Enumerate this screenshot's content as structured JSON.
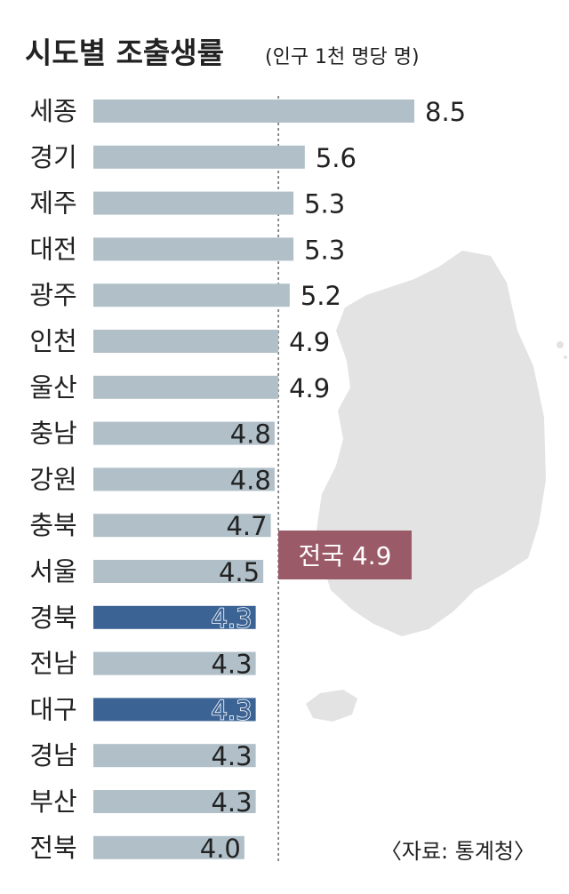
{
  "chart_data": {
    "type": "bar",
    "orientation": "horizontal",
    "title": "시도별 조출생률",
    "subtitle": "(인구 1천 명당 명)",
    "categories": [
      "세종",
      "경기",
      "제주",
      "대전",
      "광주",
      "인천",
      "울산",
      "충남",
      "강원",
      "충북",
      "서울",
      "경북",
      "전남",
      "대구",
      "경남",
      "부산",
      "전북"
    ],
    "values": [
      8.5,
      5.6,
      5.3,
      5.3,
      5.2,
      4.9,
      4.9,
      4.8,
      4.8,
      4.7,
      4.5,
      4.3,
      4.3,
      4.3,
      4.3,
      4.3,
      4.0
    ],
    "value_labels": [
      "8.5",
      "5.6",
      "5.3",
      "5.3",
      "5.2",
      "4.9",
      "4.9",
      "4.8",
      "4.8",
      "4.7",
      "4.5",
      "4.3",
      "4.3",
      "4.3",
      "4.3",
      "4.3",
      "4.0"
    ],
    "highlighted": [
      "경북",
      "대구"
    ],
    "reference_line": {
      "value": 4.9,
      "label": "전국 4.9"
    },
    "source": "〈자료: 통계청〉",
    "colors": {
      "bar": "#b0bfc8",
      "bar_highlight": "#3b6394",
      "reference_box": "#9a5a68",
      "reference_text": "#ffffff",
      "map": "#e3e3e3",
      "text": "#222222"
    },
    "xlim": [
      0,
      8.5
    ],
    "grid": false
  }
}
